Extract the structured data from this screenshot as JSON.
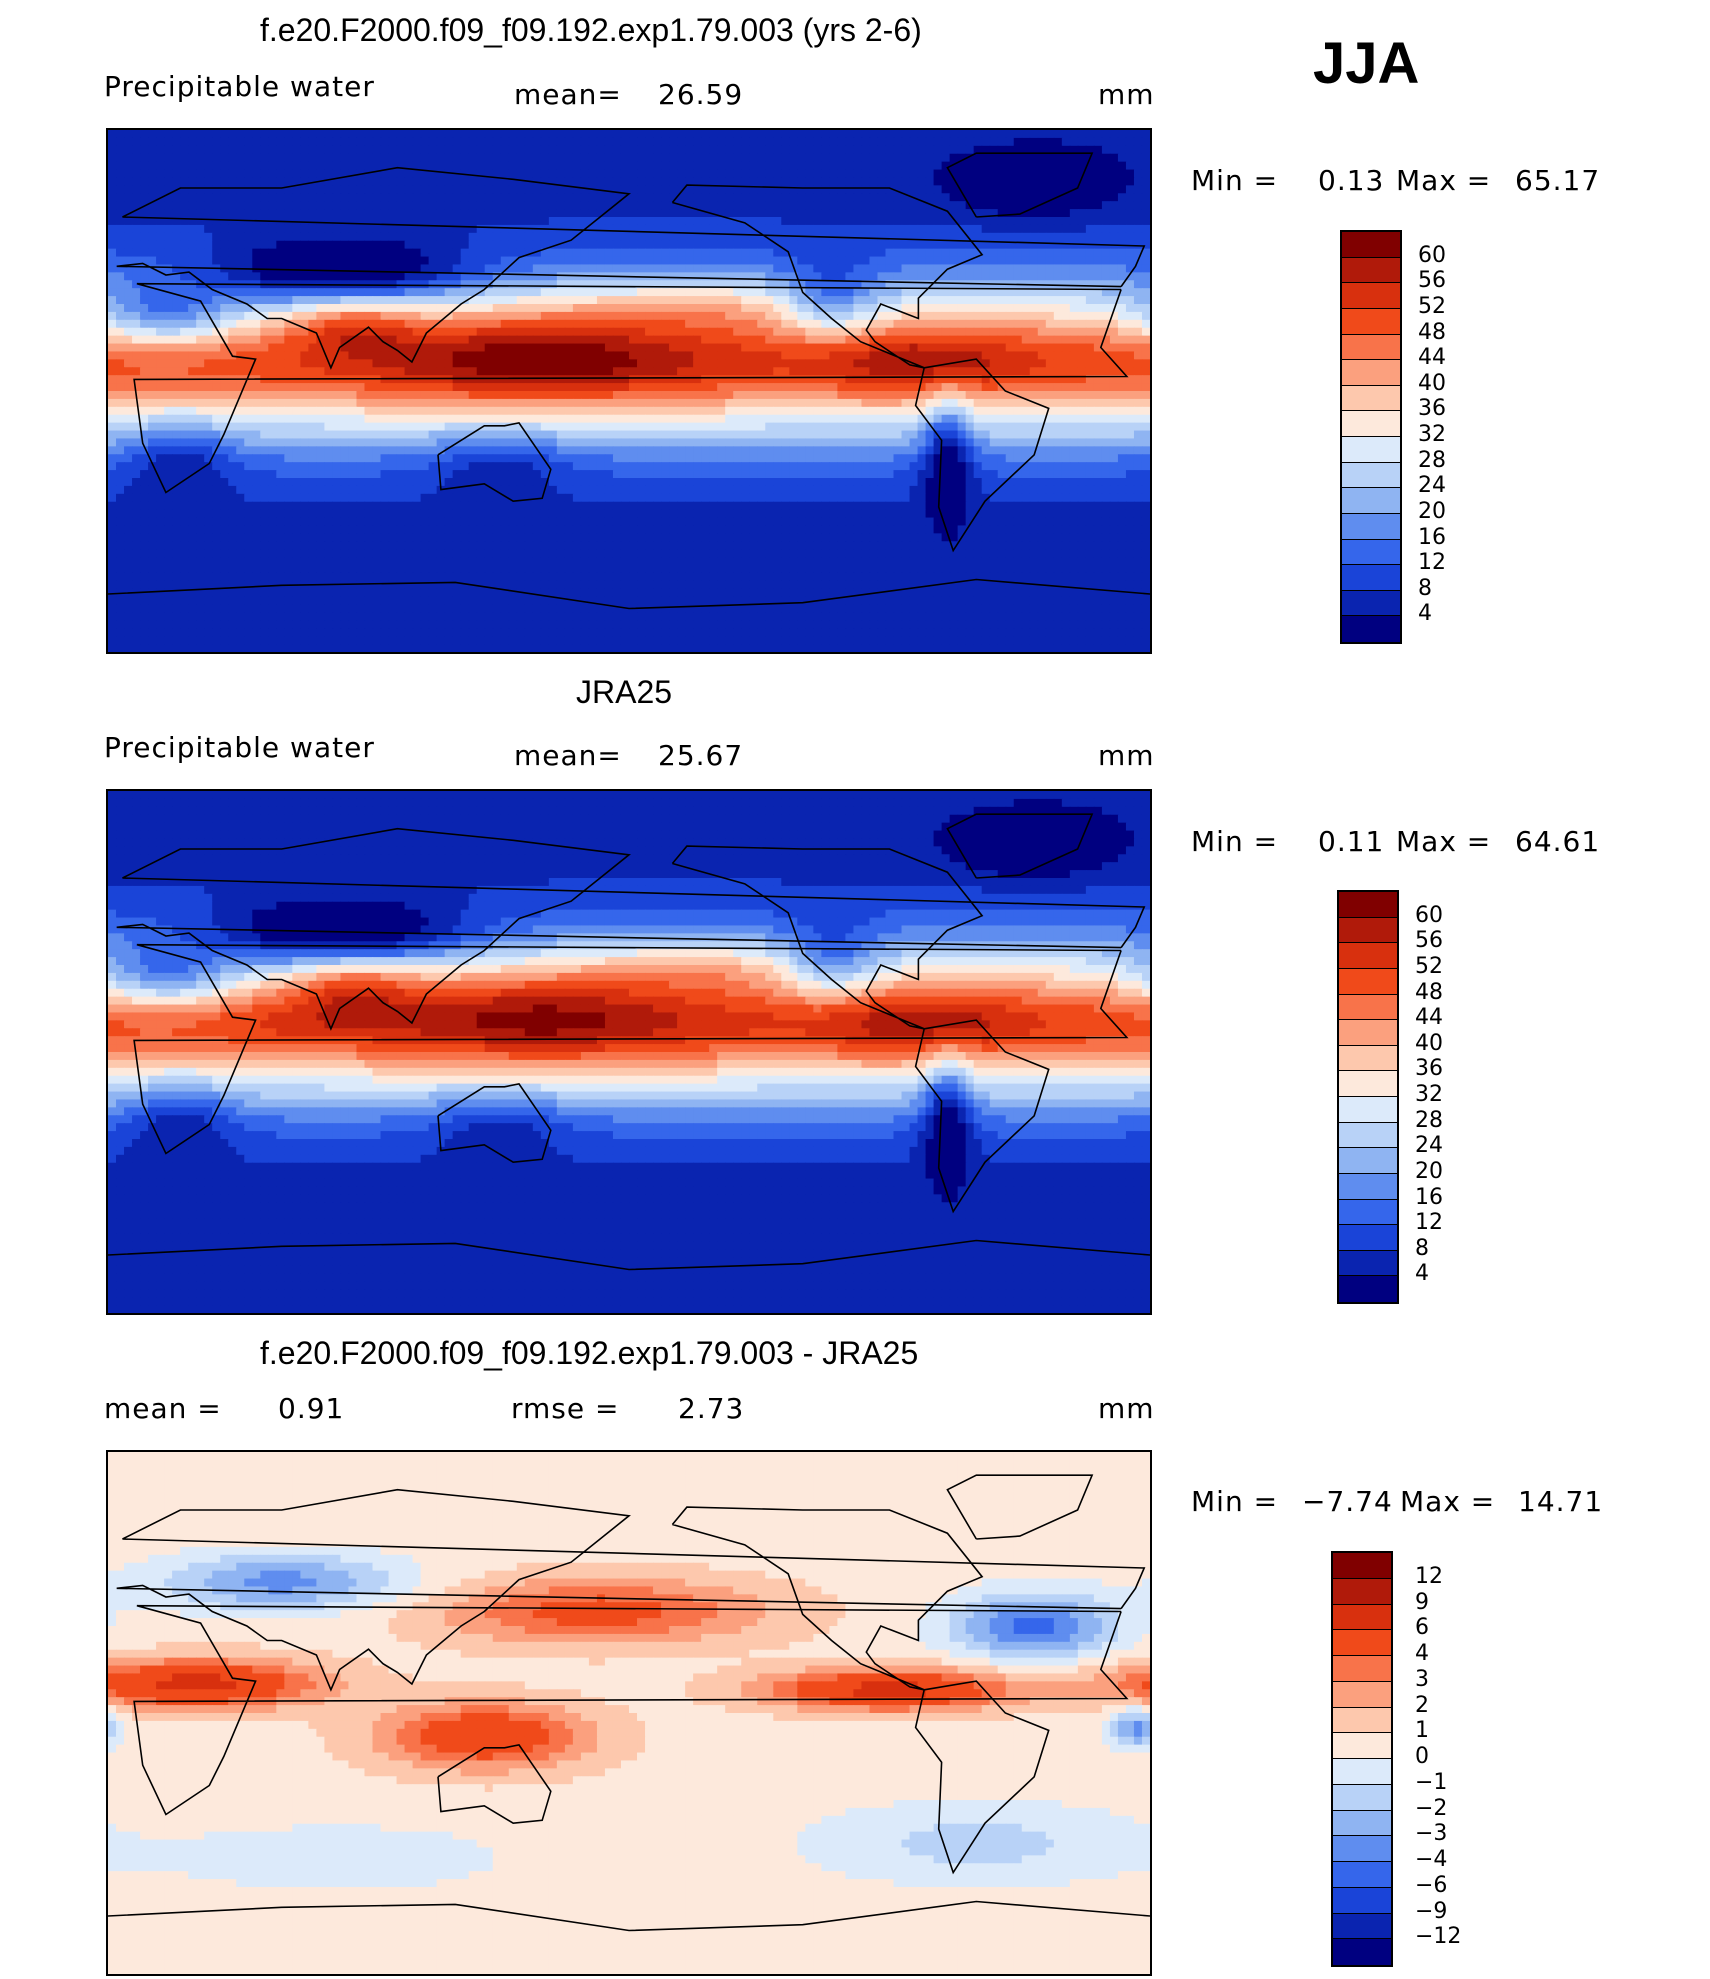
{
  "season": "JJA",
  "panels": [
    {
      "title": "f.e20.F2000.f09_f09.192.exp1.79.003 (yrs 2-6)",
      "left_label": "Precipitable  water",
      "mid_label": "mean=",
      "mid_value": "26.59",
      "unit": "mm",
      "minmax": {
        "min_label": "Min  =",
        "min": "0.13",
        "max_label": "Max  =",
        "max": "65.17"
      },
      "colorbar": {
        "ticks": [
          "60",
          "56",
          "52",
          "48",
          "44",
          "40",
          "36",
          "32",
          "28",
          "24",
          "20",
          "16",
          "12",
          "8",
          "4"
        ],
        "colors": [
          "#800000",
          "#b01a0a",
          "#d8300e",
          "#f04a1a",
          "#f8734a",
          "#fba07e",
          "#fdc8ad",
          "#fde9dc",
          "#dceafa",
          "#b8d2f7",
          "#8fb4f2",
          "#5f8def",
          "#3566eb",
          "#1a44d8",
          "#0a24b0",
          "#000080"
        ]
      },
      "field": "model"
    },
    {
      "title": "JRA25",
      "left_label": "Precipitable  water",
      "mid_label": "mean=",
      "mid_value": "25.67",
      "unit": "mm",
      "minmax": {
        "min_label": "Min  =",
        "min": "0.11",
        "max_label": "Max  =",
        "max": "64.61"
      },
      "colorbar": {
        "ticks": [
          "60",
          "56",
          "52",
          "48",
          "44",
          "40",
          "36",
          "32",
          "28",
          "24",
          "20",
          "16",
          "12",
          "8",
          "4"
        ],
        "colors": [
          "#800000",
          "#b01a0a",
          "#d8300e",
          "#f04a1a",
          "#f8734a",
          "#fba07e",
          "#fdc8ad",
          "#fde9dc",
          "#dceafa",
          "#b8d2f7",
          "#8fb4f2",
          "#5f8def",
          "#3566eb",
          "#1a44d8",
          "#0a24b0",
          "#000080"
        ]
      },
      "field": "obs"
    },
    {
      "title": "f.e20.F2000.f09_f09.192.exp1.79.003 - JRA25",
      "left_label": "mean  =",
      "left_value": "0.91",
      "mid_label": "rmse  =",
      "mid_value": "2.73",
      "unit": "mm",
      "minmax": {
        "min_label": "Min  =",
        "min": "−7.74",
        "max_label": "Max  =",
        "max": "14.71"
      },
      "colorbar": {
        "ticks": [
          "12",
          "9",
          "6",
          "4",
          "3",
          "2",
          "1",
          "0",
          "−1",
          "−2",
          "−3",
          "−4",
          "−6",
          "−9",
          "−12"
        ],
        "colors": [
          "#800000",
          "#b01a0a",
          "#d8300e",
          "#f04a1a",
          "#f8734a",
          "#fba07e",
          "#fdc8ad",
          "#fde9dc",
          "#dceafa",
          "#b8d2f7",
          "#8fb4f2",
          "#5f8def",
          "#3566eb",
          "#1a44d8",
          "#0a24b0",
          "#000080"
        ]
      },
      "field": "diff"
    }
  ]
}
